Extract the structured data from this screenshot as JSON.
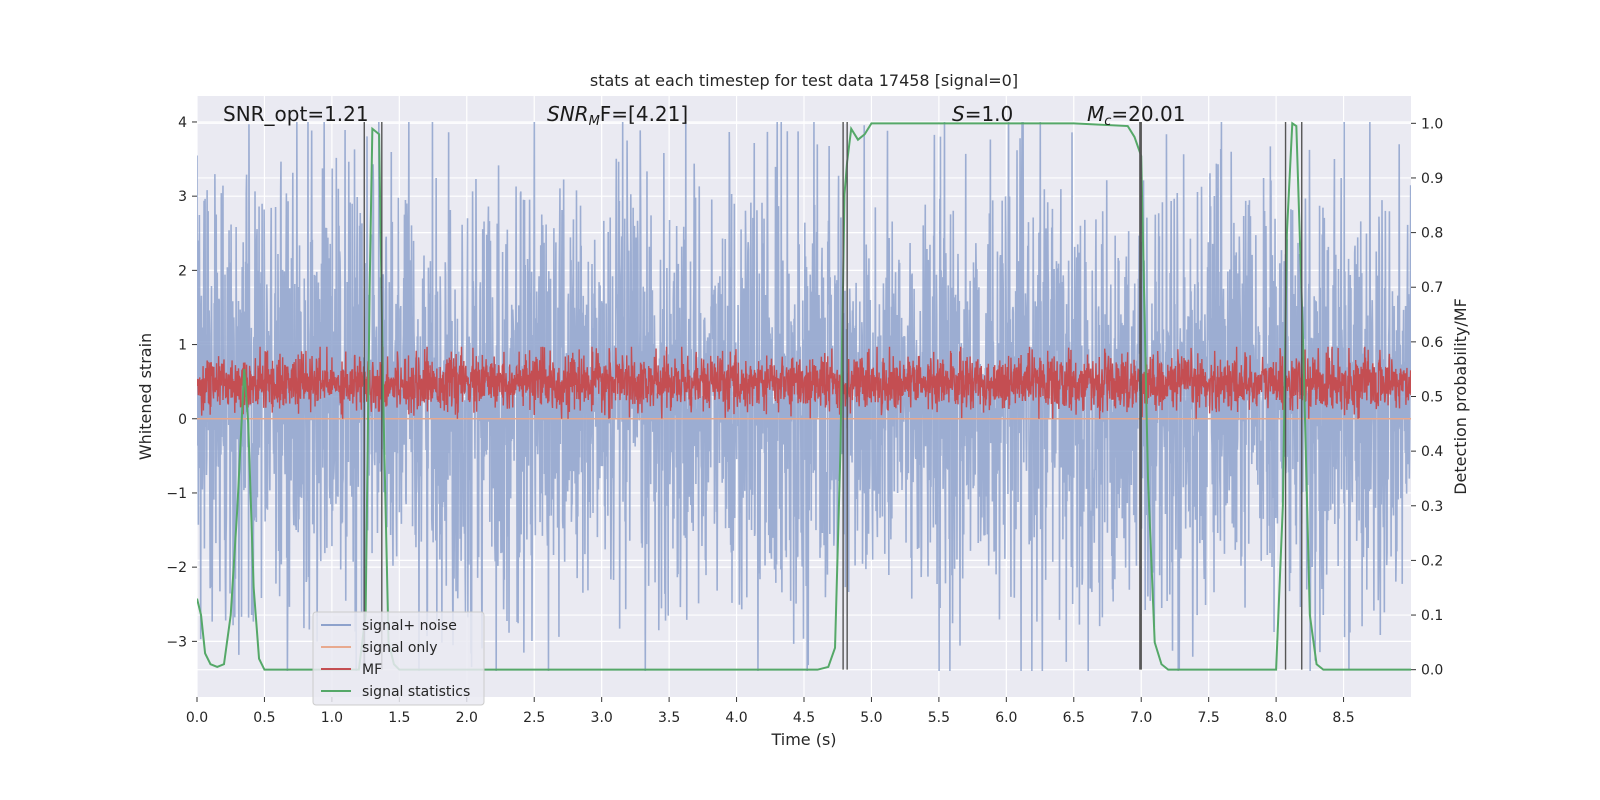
{
  "chart_data": {
    "type": "line",
    "title": "stats at each timestep for test data 17458 [signal=0]",
    "xlabel": "Time (s)",
    "ylabel_left": "Whitened strain",
    "ylabel_right": "Detection probability/MF",
    "xlim": [
      0,
      9.0
    ],
    "ylim_left": [
      -3.75,
      4.35
    ],
    "ylim_right": [
      -0.05,
      1.05
    ],
    "x_ticks": [
      "0.0",
      "0.5",
      "1.0",
      "1.5",
      "2.0",
      "2.5",
      "3.0",
      "3.5",
      "4.0",
      "4.5",
      "5.0",
      "5.5",
      "6.0",
      "6.5",
      "7.0",
      "7.5",
      "8.0",
      "8.5"
    ],
    "y_ticks_left": [
      "4",
      "3",
      "2",
      "1",
      "0",
      "−1",
      "−2",
      "−3"
    ],
    "y_ticks_right": [
      "1.0",
      "0.9",
      "0.8",
      "0.7",
      "0.6",
      "0.5",
      "0.4",
      "0.3",
      "0.2",
      "0.1",
      "0.0"
    ],
    "grid": true,
    "legend_position": "lower-left",
    "annotations": {
      "snr_opt": "SNR_opt=1.21",
      "snr_mf_base": "SNR",
      "snr_mf_sub": "M",
      "snr_mf_rest": "F=[4.21]",
      "s_italic": "S",
      "s_rest": "=1.0",
      "mc_base": "M",
      "mc_sub": "c",
      "mc_rest": "=20.01"
    },
    "series": [
      {
        "name": "signal+ noise",
        "color": "#8ea2cc",
        "axis": "left",
        "kind": "noise",
        "mean": -0.1,
        "envelope": [
          -3.4,
          4.0
        ]
      },
      {
        "name": "signal only",
        "color": "#e8a98e",
        "axis": "left",
        "kind": "flat",
        "value": 0.0
      },
      {
        "name": "MF",
        "color": "#c44e52",
        "axis": "left",
        "kind": "noise",
        "mean": 0.25,
        "envelope": [
          0.0,
          0.97
        ]
      },
      {
        "name": "signal statistics",
        "color": "#55a868",
        "axis": "right",
        "x": [
          0.0,
          0.03,
          0.06,
          0.1,
          0.15,
          0.2,
          0.25,
          0.3,
          0.35,
          0.38,
          0.42,
          0.46,
          0.5,
          0.6,
          0.8,
          1.0,
          1.2,
          1.25,
          1.28,
          1.3,
          1.35,
          1.38,
          1.42,
          1.46,
          1.5,
          1.7,
          2.0,
          2.5,
          3.0,
          3.5,
          4.0,
          4.5,
          4.6,
          4.68,
          4.73,
          4.77,
          4.8,
          4.82,
          4.85,
          4.9,
          4.95,
          5.0,
          5.05,
          5.1,
          5.5,
          6.0,
          6.5,
          6.9,
          6.95,
          7.0,
          7.05,
          7.1,
          7.15,
          7.2,
          7.3,
          7.6,
          8.0,
          8.05,
          8.08,
          8.12,
          8.15,
          8.2,
          8.25,
          8.3,
          8.35,
          8.5,
          9.0
        ],
        "y": [
          0.13,
          0.1,
          0.03,
          0.01,
          0.005,
          0.01,
          0.1,
          0.3,
          0.55,
          0.45,
          0.15,
          0.02,
          0.0,
          0.0,
          0.0,
          0.0,
          0.0,
          0.1,
          0.7,
          0.99,
          0.98,
          0.5,
          0.05,
          0.01,
          0.0,
          0.0,
          0.0,
          0.0,
          0.0,
          0.0,
          0.0,
          0.0,
          0.0,
          0.005,
          0.04,
          0.4,
          0.87,
          0.93,
          0.99,
          0.97,
          0.98,
          1.0,
          1.0,
          1.0,
          1.0,
          1.0,
          1.0,
          0.995,
          0.975,
          0.94,
          0.35,
          0.05,
          0.01,
          0.0,
          0.0,
          0.0,
          0.0,
          0.3,
          0.8,
          1.0,
          0.995,
          0.6,
          0.1,
          0.01,
          0.0,
          0.0,
          0.0
        ]
      }
    ],
    "vertical_lines": [
      1.24,
      1.37,
      4.79,
      4.82,
      6.99,
      7.0,
      8.07,
      8.19
    ]
  }
}
